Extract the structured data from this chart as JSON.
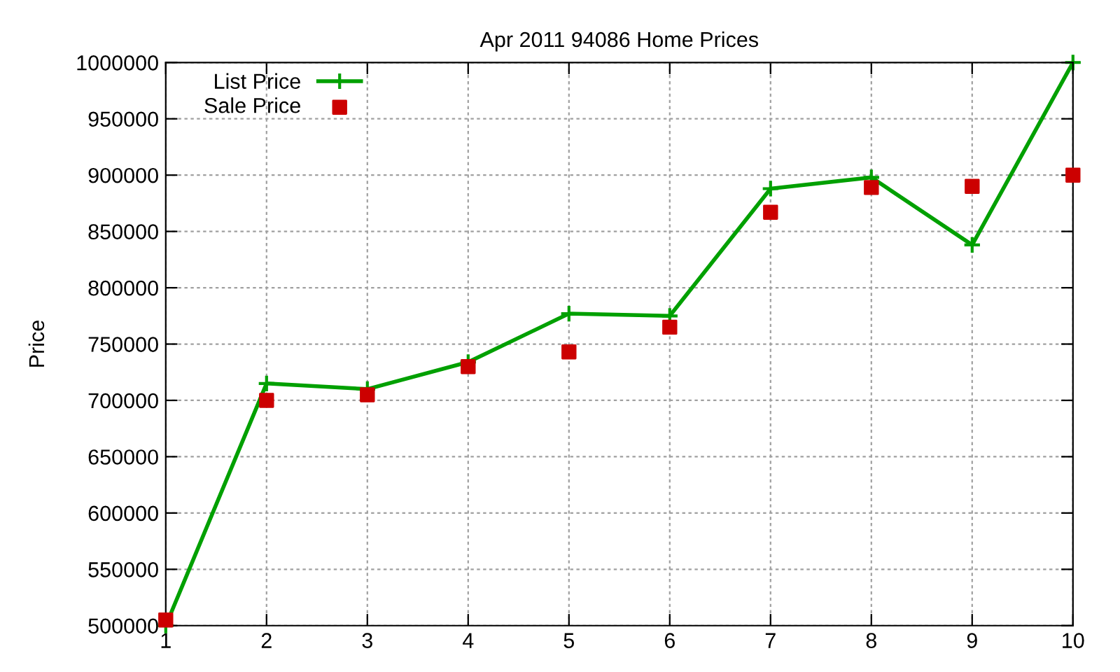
{
  "chart_data": {
    "type": "line",
    "title": "Apr 2011 94086 Home Prices",
    "ylabel": "Price",
    "x": [
      1,
      2,
      3,
      4,
      5,
      6,
      7,
      8,
      9,
      10
    ],
    "series": [
      {
        "name": "List Price",
        "color": "#00a000",
        "marker": "cross",
        "values": [
          500000,
          715000,
          710000,
          734000,
          777000,
          775000,
          888000,
          898000,
          838000,
          1000000
        ]
      },
      {
        "name": "Sale Price",
        "type": "scatter",
        "color": "#cc0000",
        "marker": "square",
        "values": [
          505000,
          700000,
          705000,
          730000,
          743000,
          765000,
          867000,
          889000,
          890000,
          900000
        ]
      }
    ],
    "xlim": [
      1,
      10
    ],
    "xticks": [
      1,
      2,
      3,
      4,
      5,
      6,
      7,
      8,
      9,
      10
    ],
    "ylim": [
      500000,
      1000000
    ],
    "yticks": [
      500000,
      550000,
      600000,
      650000,
      700000,
      750000,
      800000,
      850000,
      900000,
      950000,
      1000000
    ],
    "grid": true,
    "legend": "top left"
  }
}
